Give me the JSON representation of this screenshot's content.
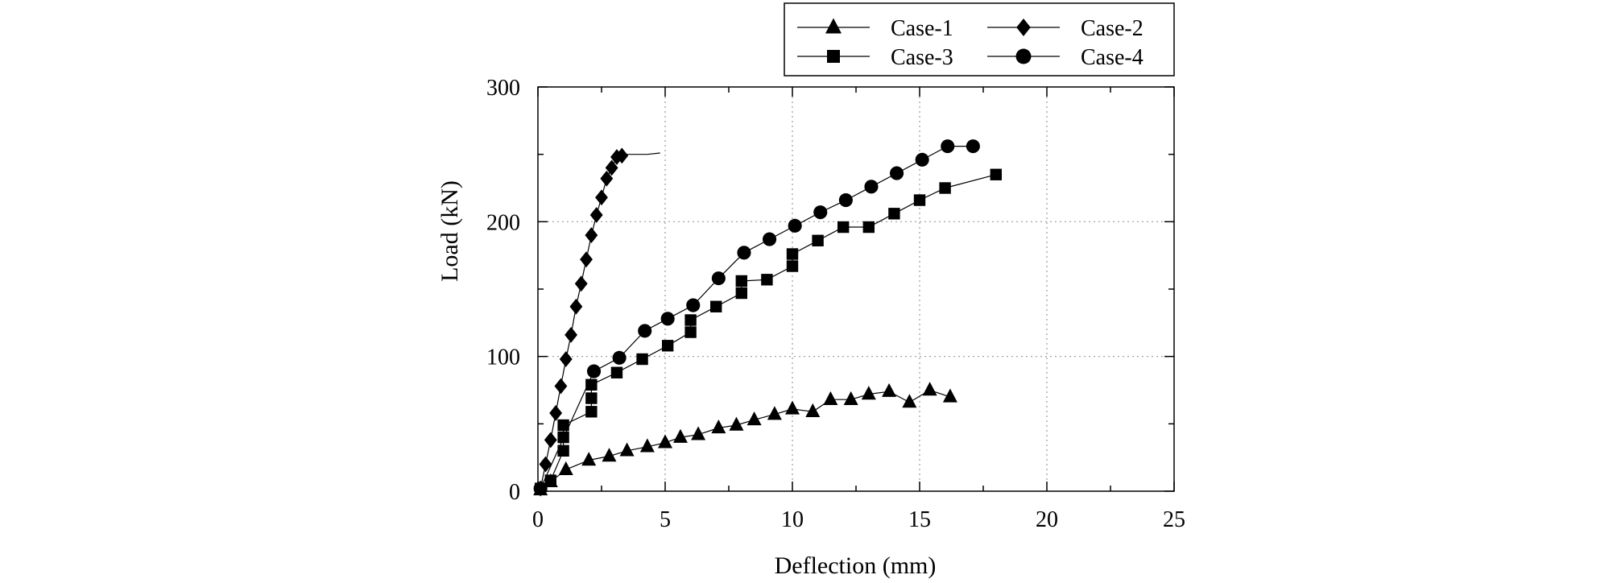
{
  "chart_data": {
    "type": "line",
    "title": "",
    "xlabel": "Deflection (mm)",
    "ylabel": "Load (kN)",
    "xlim": [
      0,
      25
    ],
    "ylim": [
      0,
      300
    ],
    "xticks": [
      0,
      5,
      10,
      15,
      20,
      25
    ],
    "yticks": [
      0,
      100,
      200,
      300
    ],
    "xtick_labels": [
      "0",
      "5",
      "10",
      "15",
      "20",
      "25"
    ],
    "ytick_labels": [
      "0",
      "100",
      "200",
      "300"
    ],
    "grid": true,
    "legend_position": "top-right, above plot",
    "series": [
      {
        "name": "Case-1",
        "marker": "triangle",
        "x": [
          0.1,
          0.5,
          1.1,
          2.0,
          2.8,
          3.5,
          4.3,
          5.0,
          5.6,
          6.3,
          7.1,
          7.8,
          8.5,
          9.3,
          10.0,
          10.8,
          11.5,
          12.3,
          13.0,
          13.8,
          14.6,
          15.4,
          16.2
        ],
        "y": [
          1,
          7,
          16,
          23,
          26,
          30,
          33,
          36,
          40,
          42,
          47,
          49,
          53,
          57,
          61,
          59,
          68,
          68,
          72,
          74,
          66,
          75,
          70
        ]
      },
      {
        "name": "Case-2",
        "marker": "diamond",
        "x": [
          0.1,
          0.3,
          0.5,
          0.7,
          0.9,
          1.1,
          1.3,
          1.5,
          1.7,
          1.9,
          2.1,
          2.3,
          2.5,
          2.7,
          2.9,
          3.1,
          3.3,
          3.5,
          3.7,
          3.9,
          4.1,
          4.3,
          4.8
        ],
        "y": [
          2,
          20,
          38,
          58,
          78,
          98,
          116,
          137,
          154,
          172,
          190,
          205,
          218,
          232,
          240,
          248,
          249,
          250,
          250,
          250,
          250,
          250,
          251
        ]
      },
      {
        "name": "Case-3",
        "marker": "square",
        "x": [
          0.1,
          0.5,
          1.0,
          1.0,
          1.0,
          2.1,
          2.1,
          2.1,
          3.1,
          4.1,
          5.1,
          6.0,
          6.0,
          7.0,
          8.0,
          8.0,
          9.0,
          10.0,
          10.0,
          11.0,
          12.0,
          13.0,
          14.0,
          15.0,
          16.0,
          18.0
        ],
        "y": [
          2,
          8,
          30,
          40,
          49,
          59,
          69,
          79,
          88,
          98,
          108,
          118,
          127,
          137,
          147,
          156,
          157,
          167,
          176,
          186,
          196,
          196,
          206,
          216,
          225,
          235
        ]
      },
      {
        "name": "Case-4",
        "marker": "circle",
        "x": [
          0.1,
          2.2,
          3.2,
          4.2,
          5.1,
          6.1,
          7.1,
          8.1,
          9.1,
          10.1,
          11.1,
          12.1,
          13.1,
          14.1,
          15.1,
          16.1,
          17.1
        ],
        "y": [
          2,
          89,
          99,
          119,
          128,
          138,
          158,
          177,
          187,
          197,
          207,
          216,
          226,
          236,
          246,
          256,
          256
        ]
      }
    ]
  },
  "legend": {
    "items": [
      "Case-1",
      "Case-2",
      "Case-3",
      "Case-4"
    ]
  }
}
